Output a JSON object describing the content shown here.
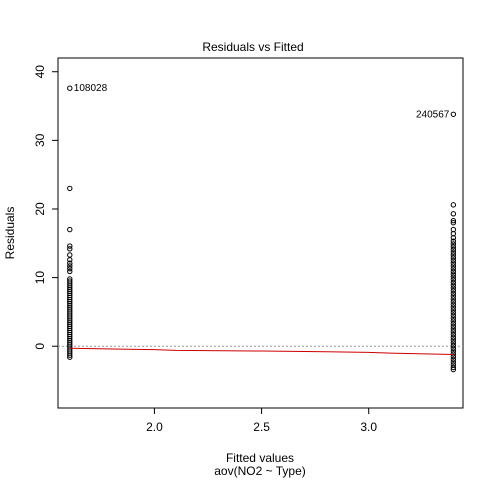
{
  "chart_data": {
    "type": "scatter",
    "title": "Residuals vs Fitted",
    "xlabel": "Fitted values",
    "subtitle": "aov(NO2 ~ Type)",
    "ylabel": "Residuals",
    "xlim": [
      1.55,
      3.44
    ],
    "ylim": [
      -9,
      42
    ],
    "xticks": [
      2.0,
      2.5,
      3.0
    ],
    "xtick_labels": [
      "2.0",
      "2.5",
      "3.0"
    ],
    "yticks": [
      0,
      10,
      20,
      30,
      40
    ],
    "ytick_labels": [
      "0",
      "10",
      "20",
      "30",
      "40"
    ],
    "series": [
      {
        "x": 1.605,
        "values": [
          37.6,
          23.0,
          17.0,
          14.6,
          14.2,
          13.3,
          12.6,
          12.1,
          11.7,
          11.3,
          10.9,
          9.8,
          9.5,
          9.2,
          8.9,
          8.6,
          8.3,
          8.0,
          7.7,
          7.4,
          7.1,
          6.8,
          6.5,
          6.2,
          5.9,
          5.6,
          5.3,
          5.0,
          4.7,
          4.4,
          4.1,
          3.8,
          3.5,
          3.2,
          2.9,
          2.6,
          2.3,
          2.0,
          1.7,
          1.4,
          1.1,
          0.8,
          0.5,
          0.2,
          -0.1,
          -0.4,
          -0.7,
          -1.0,
          -1.3,
          -1.6
        ]
      },
      {
        "x": 3.395,
        "values": [
          33.8,
          20.6,
          19.3,
          18.3,
          18.0,
          17.0,
          16.4,
          15.8,
          15.3,
          14.9,
          14.5,
          14.1,
          13.7,
          13.3,
          12.9,
          12.5,
          12.1,
          11.7,
          11.3,
          10.9,
          10.5,
          10.1,
          9.7,
          9.3,
          8.9,
          8.5,
          8.1,
          7.7,
          7.3,
          6.9,
          6.5,
          6.1,
          5.7,
          5.3,
          4.9,
          4.5,
          4.1,
          3.7,
          3.3,
          2.9,
          2.5,
          2.1,
          1.7,
          1.3,
          0.9,
          0.5,
          0.1,
          -0.3,
          -0.7,
          -1.1,
          -1.5,
          -1.9,
          -2.3,
          -2.7,
          -3.1,
          -3.4
        ]
      }
    ],
    "smooth": {
      "color": "#cc0000",
      "x": [
        1.605,
        2.0,
        2.1,
        2.5,
        2.8,
        3.0,
        3.1,
        3.395
      ],
      "y": [
        -0.3,
        -0.5,
        -0.6,
        -0.7,
        -0.8,
        -0.9,
        -1.0,
        -1.2
      ]
    },
    "reference_line": {
      "y": 0,
      "style": "dotted",
      "color": "#999999"
    },
    "annotations": [
      {
        "text": "108028",
        "x": 1.605,
        "y": 37.6,
        "side": "right"
      },
      {
        "text": "240567",
        "x": 3.395,
        "y": 33.8,
        "side": "left"
      }
    ],
    "grid": false
  }
}
